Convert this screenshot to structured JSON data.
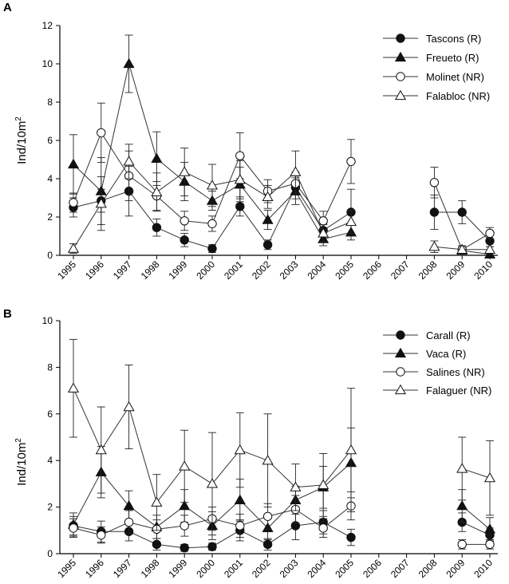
{
  "chart_data": [
    {
      "type": "line",
      "panel_label": "A",
      "ylabel": "Ind/10m",
      "ylabel_sup": "2",
      "ylim": [
        0,
        12
      ],
      "yticks": [
        "0",
        "2",
        "4",
        "6",
        "8",
        "10",
        "12"
      ],
      "x": [
        "1995",
        "1996",
        "1997",
        "1998",
        "1999",
        "2000",
        "2001",
        "2002",
        "2003",
        "2004",
        "2005",
        "2006",
        "2007",
        "2008",
        "2009",
        "2010"
      ],
      "legend_position": "top-right",
      "series": [
        {
          "name": "Tascons (R)",
          "marker": "circle-filled",
          "values": [
            2.5,
            2.85,
            3.35,
            1.45,
            0.8,
            0.35,
            2.55,
            0.55,
            3.55,
            1.3,
            2.25,
            null,
            null,
            2.25,
            2.25,
            0.75
          ],
          "err": [
            0.5,
            0.6,
            1.3,
            0.45,
            0.35,
            0.2,
            0.5,
            0.25,
            0.6,
            0.35,
            1.2,
            null,
            null,
            0.9,
            0.6,
            0.3
          ]
        },
        {
          "name": "Freueto (R)",
          "marker": "triangle-filled",
          "values": [
            4.75,
            3.35,
            10.0,
            5.05,
            3.85,
            2.85,
            3.7,
            1.85,
            3.35,
            0.85,
            1.2,
            null,
            null,
            null,
            0.25,
            0.05
          ],
          "err": [
            1.55,
            1.75,
            1.5,
            1.4,
            1.0,
            0.5,
            0.9,
            0.5,
            0.7,
            0.35,
            0.4,
            null,
            null,
            null,
            0.15,
            0.1
          ]
        },
        {
          "name": "Molinet (NR)",
          "marker": "circle-open",
          "values": [
            2.75,
            6.4,
            4.15,
            3.1,
            1.8,
            1.65,
            5.2,
            3.35,
            3.75,
            1.8,
            4.9,
            null,
            null,
            3.8,
            0.3,
            1.15
          ],
          "err": [
            0.5,
            1.55,
            1.3,
            0.75,
            0.5,
            0.4,
            1.2,
            0.6,
            0.6,
            0.5,
            1.15,
            null,
            null,
            0.8,
            0.2,
            0.3
          ]
        },
        {
          "name": "Falabloc (NR)",
          "marker": "triangle-open",
          "values": [
            0.35,
            2.7,
            4.9,
            3.3,
            4.35,
            3.65,
            3.95,
            3.05,
            4.35,
            1.15,
            1.75,
            null,
            null,
            0.45,
            0.3,
            0.3
          ],
          "err": [
            0.25,
            1.4,
            0.9,
            1.0,
            1.25,
            1.1,
            1.0,
            0.6,
            1.1,
            0.45,
            0.6,
            null,
            null,
            0.3,
            0.2,
            0.15
          ]
        }
      ]
    },
    {
      "type": "line",
      "panel_label": "B",
      "ylabel": "Ind/10m",
      "ylabel_sup": "2",
      "ylim": [
        0,
        10
      ],
      "yticks": [
        "0",
        "2",
        "4",
        "6",
        "8",
        "10"
      ],
      "x": [
        "1995",
        "1996",
        "1997",
        "1998",
        "1999",
        "2000",
        "2001",
        "2002",
        "2003",
        "2004",
        "2005",
        "2006",
        "2007",
        "2008",
        "2009",
        "2010"
      ],
      "legend_position": "top-right",
      "series": [
        {
          "name": "Carall (R)",
          "marker": "circle-filled",
          "values": [
            1.2,
            0.95,
            0.95,
            0.4,
            0.25,
            0.3,
            1.0,
            0.4,
            1.2,
            1.35,
            0.7,
            null,
            null,
            null,
            1.35,
            0.8
          ],
          "err": [
            0.4,
            0.45,
            0.4,
            0.25,
            0.15,
            0.15,
            0.45,
            0.25,
            0.6,
            0.5,
            0.35,
            null,
            null,
            null,
            0.4,
            0.3
          ]
        },
        {
          "name": "Vaca (R)",
          "marker": "triangle-filled",
          "values": [
            1.25,
            3.5,
            2.05,
            1.15,
            2.05,
            1.2,
            2.3,
            1.1,
            2.3,
            2.85,
            3.9,
            null,
            null,
            null,
            2.05,
            1.05
          ],
          "err": [
            0.5,
            1.1,
            0.65,
            0.5,
            0.7,
            0.6,
            0.9,
            0.5,
            0.6,
            0.9,
            1.5,
            null,
            null,
            null,
            0.7,
            0.5
          ]
        },
        {
          "name": "Salines (NR)",
          "marker": "circle-open",
          "values": [
            1.1,
            0.8,
            1.35,
            1.05,
            1.2,
            1.5,
            1.2,
            1.6,
            1.9,
            1.1,
            2.05,
            null,
            null,
            null,
            0.4,
            0.4
          ],
          "err": [
            0.4,
            0.35,
            0.5,
            0.4,
            0.45,
            0.5,
            0.5,
            0.55,
            0.6,
            0.4,
            0.6,
            null,
            null,
            null,
            0.2,
            0.2
          ]
        },
        {
          "name": "Falaguer (NR)",
          "marker": "triangle-open",
          "values": [
            7.1,
            4.45,
            6.3,
            2.2,
            3.75,
            3.0,
            4.45,
            4.0,
            2.85,
            2.95,
            4.45,
            null,
            null,
            null,
            3.65,
            3.25
          ],
          "err": [
            2.1,
            1.85,
            1.8,
            1.2,
            1.55,
            2.2,
            1.6,
            2.0,
            1.0,
            1.35,
            2.65,
            null,
            null,
            null,
            1.35,
            1.6
          ]
        }
      ]
    }
  ]
}
